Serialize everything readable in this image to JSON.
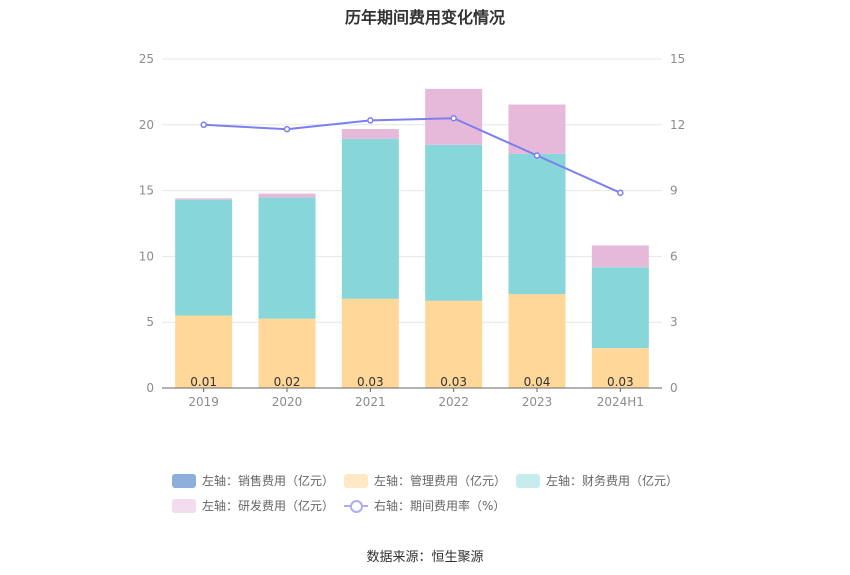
{
  "title": "历年期间费用变化情况",
  "source": "数据来源：恒生聚源",
  "colors": {
    "sales": "#8eaedb",
    "admin": "#ffd899",
    "finance": "#86d6da",
    "rd": "#e6b9da",
    "rate": "#7b80f0"
  },
  "legend": [
    {
      "label": "左轴：销售费用（亿元）",
      "swatch": "#8eaedb",
      "kind": "box"
    },
    {
      "label": "左轴：管理费用（亿元）",
      "swatch": "#ffe9c4",
      "kind": "box"
    },
    {
      "label": "左轴：财务费用（亿元）",
      "swatch": "#c6ecee",
      "kind": "box"
    },
    {
      "label": "左轴：研发费用（亿元）",
      "swatch": "#f3dcee",
      "kind": "box"
    },
    {
      "label": "右轴：期间费用率（%）",
      "swatch": "#a9aef7",
      "kind": "line"
    }
  ],
  "chart_data": {
    "type": "bar",
    "stacked": true,
    "categories": [
      "2019",
      "2020",
      "2021",
      "2022",
      "2023",
      "2024H1"
    ],
    "series": [
      {
        "name": "左轴：销售费用（亿元）",
        "axis": "left",
        "values": [
          0.01,
          0.02,
          0.03,
          0.03,
          0.04,
          0.03
        ]
      },
      {
        "name": "左轴：管理费用（亿元）",
        "axis": "left",
        "values": [
          5.5,
          5.25,
          6.75,
          6.6,
          7.1,
          3.0
        ]
      },
      {
        "name": "左轴：财务费用（亿元）",
        "axis": "left",
        "values": [
          8.8,
          9.2,
          12.15,
          11.85,
          10.65,
          6.15
        ]
      },
      {
        "name": "左轴：研发费用（亿元）",
        "axis": "left",
        "values": [
          0.1,
          0.3,
          0.75,
          4.25,
          3.75,
          1.65
        ]
      },
      {
        "name": "右轴：期间费用率（%）",
        "axis": "right",
        "type": "line",
        "values": [
          12.0,
          11.8,
          12.2,
          12.3,
          10.6,
          8.9
        ]
      }
    ],
    "data_labels": [
      "0.01",
      "0.02",
      "0.03",
      "0.03",
      "0.04",
      "0.03"
    ],
    "y_left": {
      "min": 0,
      "max": 25,
      "ticks": [
        "0",
        "5",
        "10",
        "15",
        "20",
        "25"
      ]
    },
    "y_right": {
      "min": 0,
      "max": 15,
      "ticks": [
        "0",
        "3",
        "6",
        "9",
        "12",
        "15"
      ]
    },
    "grid": true,
    "legend_position": "bottom"
  }
}
